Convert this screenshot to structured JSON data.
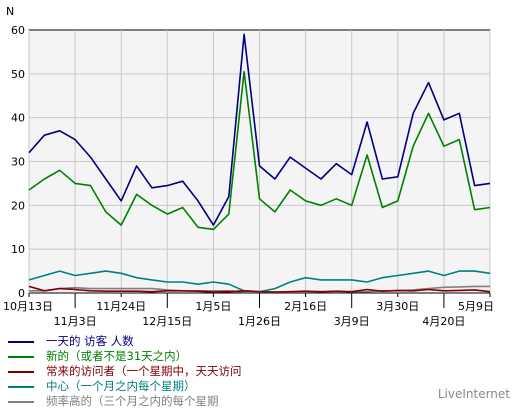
{
  "chart_data": {
    "type": "line",
    "ylabel": "N",
    "ylim": [
      0,
      60
    ],
    "yticks": [
      0,
      10,
      20,
      30,
      40,
      50,
      60
    ],
    "grid": true,
    "x_tick_labels": [
      {
        "label": "10月13日",
        "index": 0,
        "row": 1
      },
      {
        "label": "11月3日",
        "index": 3,
        "row": 2
      },
      {
        "label": "11月24日",
        "index": 6,
        "row": 1
      },
      {
        "label": "12月15日",
        "index": 9,
        "row": 2
      },
      {
        "label": "1月5日",
        "index": 12,
        "row": 1
      },
      {
        "label": "1月26日",
        "index": 15,
        "row": 2
      },
      {
        "label": "2月16日",
        "index": 18,
        "row": 1
      },
      {
        "label": "3月9日",
        "index": 21,
        "row": 2
      },
      {
        "label": "3月30日",
        "index": 24,
        "row": 1
      },
      {
        "label": "4月20日",
        "index": 27,
        "row": 2
      },
      {
        "label": "5月9日",
        "index": 30,
        "row": 1
      }
    ],
    "series": [
      {
        "name": "一天的 访客 人数",
        "color": "#000080",
        "values": [
          32,
          36,
          37,
          35,
          31,
          26,
          21,
          29,
          24,
          24.5,
          25.5,
          21,
          15.5,
          22,
          59,
          29,
          26,
          31,
          28.5,
          26,
          29.5,
          27,
          39,
          26,
          26.5,
          41,
          48,
          39.5,
          41,
          24.5,
          25
        ]
      },
      {
        "name": "新的（或者不是31天之内）",
        "color": "#008000",
        "values": [
          23.5,
          26,
          28,
          25,
          24.5,
          18.5,
          15.5,
          22.5,
          20,
          18,
          19.5,
          15,
          14.5,
          18,
          50.5,
          21.5,
          18.5,
          23.5,
          21,
          20,
          21.5,
          20,
          31.5,
          19.5,
          21,
          33.5,
          41,
          33.5,
          35,
          19,
          19.5
        ]
      },
      {
        "name": "常来的访问者（一个星期中，天天访问",
        "color": "#800000",
        "values": [
          1.5,
          0.5,
          1,
          0.8,
          0.5,
          0.4,
          0.4,
          0.4,
          0.3,
          0.5,
          0.5,
          0.4,
          0.2,
          0.3,
          0.5,
          0.3,
          0.2,
          0.3,
          0.4,
          0.3,
          0.4,
          0.3,
          0.8,
          0.4,
          0.6,
          0.5,
          0.8,
          0.5,
          0.6,
          0.7,
          0.3
        ]
      },
      {
        "name": "中心（一个月之内每个星期）",
        "color": "#008080",
        "values": [
          3,
          4,
          5,
          4,
          4.5,
          5,
          4.5,
          3.5,
          3,
          2.5,
          2.5,
          2,
          2.5,
          2,
          0.5,
          0.3,
          1,
          2.5,
          3.5,
          3,
          3,
          3,
          2.5,
          3.5,
          4,
          4.5,
          5,
          4,
          5,
          5,
          4.5
        ]
      },
      {
        "name": "频率高的（三个月之内的每个星期",
        "color": "#808080",
        "values": [
          0.5,
          0.5,
          1,
          1.2,
          1,
          1,
          1,
          1,
          1,
          0.7,
          0.5,
          0.5,
          0.5,
          0.5,
          0.2,
          0.2,
          0.2,
          0.2,
          0.2,
          0.3,
          0.2,
          0.3,
          0.3,
          0.5,
          0.5,
          0.7,
          1,
          1.3,
          1.4,
          1.5,
          1.5
        ]
      }
    ]
  },
  "watermark": "LiveInternet"
}
